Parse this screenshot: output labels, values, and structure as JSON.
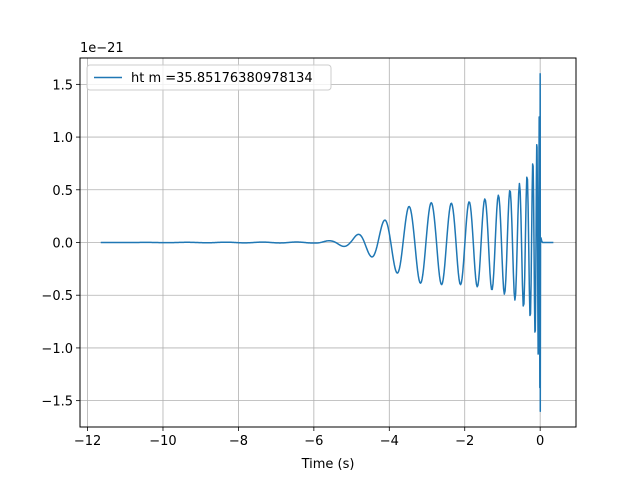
{
  "chart_data": {
    "type": "line",
    "title": "",
    "xlabel": "Time (s)",
    "ylabel": "",
    "offset_text": "1e−21",
    "xlim": [
      -12.2,
      0.95
    ],
    "ylim": [
      -1.75,
      1.75
    ],
    "xticks": [
      -12,
      -10,
      -8,
      -6,
      -4,
      -2,
      0
    ],
    "xtick_labels": [
      "−12",
      "−10",
      "−8",
      "−6",
      "−4",
      "−2",
      "0"
    ],
    "yticks": [
      -1.5,
      -1.0,
      -0.5,
      0.0,
      0.5,
      1.0,
      1.5
    ],
    "ytick_labels": [
      "−1.5",
      "−1.0",
      "−0.5",
      "0.0",
      "0.5",
      "1.0",
      "1.5"
    ],
    "grid": true,
    "legend_position": "top-left",
    "color": "#1f77b4",
    "series": [
      {
        "name": "ht m =35.85176380978134",
        "x_start": -11.65,
        "x_end": 0.35,
        "envelope": {
          "x": [
            -11.65,
            -6.0,
            -5.5,
            -5.0,
            -4.5,
            -4.0,
            -3.5,
            -3.0,
            -2.5,
            -2.0,
            -1.5,
            -1.0,
            -0.6,
            -0.3,
            -0.15,
            -0.05,
            -0.01,
            0.0,
            0.02,
            0.05,
            0.35
          ],
          "upper": [
            0.0,
            0.005,
            0.02,
            0.05,
            0.13,
            0.24,
            0.34,
            0.38,
            0.37,
            0.38,
            0.41,
            0.46,
            0.54,
            0.66,
            0.82,
            1.05,
            1.35,
            1.6,
            0.05,
            0.0,
            0.0
          ],
          "lower": [
            0.0,
            -0.005,
            -0.02,
            -0.05,
            -0.13,
            -0.24,
            -0.36,
            -0.4,
            -0.4,
            -0.4,
            -0.43,
            -0.48,
            -0.56,
            -0.68,
            -0.85,
            -1.1,
            -1.4,
            -1.6,
            -0.05,
            0.0,
            0.0
          ]
        }
      }
    ]
  }
}
